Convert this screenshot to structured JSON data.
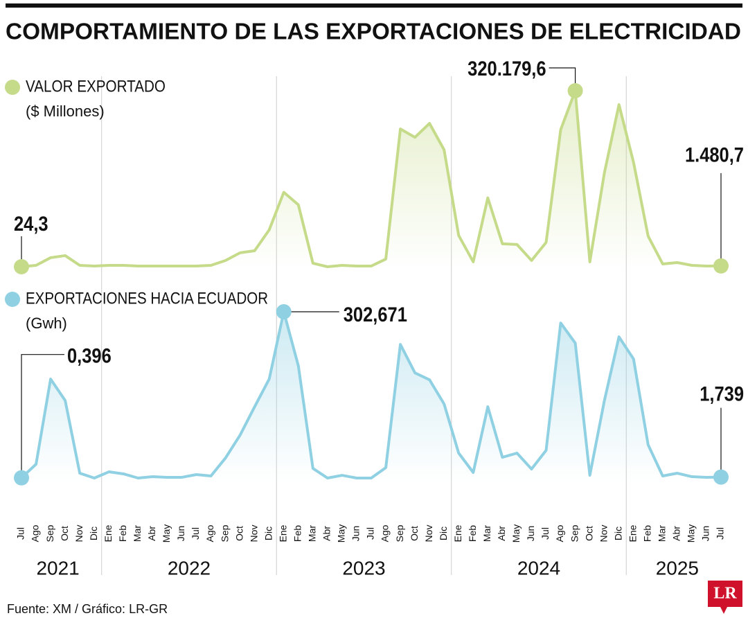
{
  "chart_data": {
    "type": "line",
    "title": "COMPORTAMIENTO DE LAS EXPORTACIONES DE ELECTRICIDAD",
    "categories": [
      "Jul",
      "Ago",
      "Sep",
      "Oct",
      "Nov",
      "Dic",
      "Ene",
      "Feb",
      "Mar",
      "Abr",
      "May",
      "Jun",
      "Jul",
      "Ago",
      "Sep",
      "Oct",
      "Nov",
      "Dic",
      "Ene",
      "Feb",
      "Mar",
      "Abr",
      "May",
      "Jun",
      "Jul",
      "Ago",
      "Sep",
      "Oct",
      "Nov",
      "Dic",
      "Ene",
      "Feb",
      "Mar",
      "Abr",
      "May",
      "Jun",
      "Jul",
      "Ago",
      "Sep",
      "Oct",
      "Nov",
      "Dic",
      "Ene",
      "Feb",
      "Mar",
      "Abr",
      "May",
      "Jun",
      "Jul"
    ],
    "years": [
      "2021",
      "2022",
      "2023",
      "2024",
      "2025"
    ],
    "series": [
      {
        "name": "VALOR EXPORTADO",
        "unit": "($ Millones)",
        "color": "#c5db8a",
        "values": [
          24.3,
          2532,
          16458,
          20256,
          2532,
          1266,
          2532,
          2532,
          1266,
          1266,
          1266,
          1266,
          1266,
          2532,
          11394,
          25320,
          29118,
          67098,
          135462,
          112674,
          6330,
          0,
          2532,
          1266,
          1266,
          13926,
          250668,
          235476,
          260796,
          212688,
          56970,
          8862,
          125334,
          41778,
          40512,
          11394,
          44310,
          249402,
          320179.6,
          8862,
          170910,
          294978,
          189900,
          55704,
          5064,
          7596,
          2532,
          1266,
          1480.7
        ],
        "value_labels": [
          "24,3",
          null,
          null,
          null,
          null,
          null,
          null,
          null,
          null,
          null,
          null,
          null,
          null,
          null,
          null,
          null,
          null,
          null,
          null,
          null,
          null,
          null,
          null,
          null,
          null,
          null,
          null,
          null,
          null,
          null,
          null,
          null,
          null,
          null,
          null,
          null,
          null,
          null,
          "320.179,6",
          null,
          null,
          null,
          null,
          null,
          null,
          null,
          null,
          null,
          "1.480,7"
        ]
      },
      {
        "name": "EXPORTACIONES HACIA ECUADOR",
        "unit": "(Gwh)",
        "color": "#8fd0e3",
        "values": [
          0.396,
          25.2,
          180.2,
          141.1,
          8.8,
          0,
          11.3,
          7.6,
          0,
          2.5,
          1.3,
          1.3,
          6.3,
          3.8,
          36.5,
          78.1,
          129.8,
          180.2,
          302.671,
          204.1,
          17.6,
          0,
          5.0,
          0,
          0,
          18.9,
          243.2,
          191.5,
          178.9,
          134.8,
          45.4,
          10.1,
          129.8,
          37.8,
          45.4,
          16.4,
          50.4,
          282.2,
          245.7,
          5.0,
          141.1,
          257.0,
          216.7,
          60.5,
          3.8,
          8.8,
          2.5,
          1.3,
          1.739
        ],
        "value_labels": [
          "0,396",
          null,
          null,
          null,
          null,
          null,
          null,
          null,
          null,
          null,
          null,
          null,
          null,
          null,
          null,
          null,
          null,
          null,
          "302,671",
          null,
          null,
          null,
          null,
          null,
          null,
          null,
          null,
          null,
          null,
          null,
          null,
          null,
          null,
          null,
          null,
          null,
          null,
          null,
          null,
          null,
          null,
          null,
          null,
          null,
          null,
          null,
          null,
          null,
          "1,739"
        ]
      }
    ],
    "source": "Fuente: XM / Gráfico: LR-GR",
    "logo": "LR"
  }
}
